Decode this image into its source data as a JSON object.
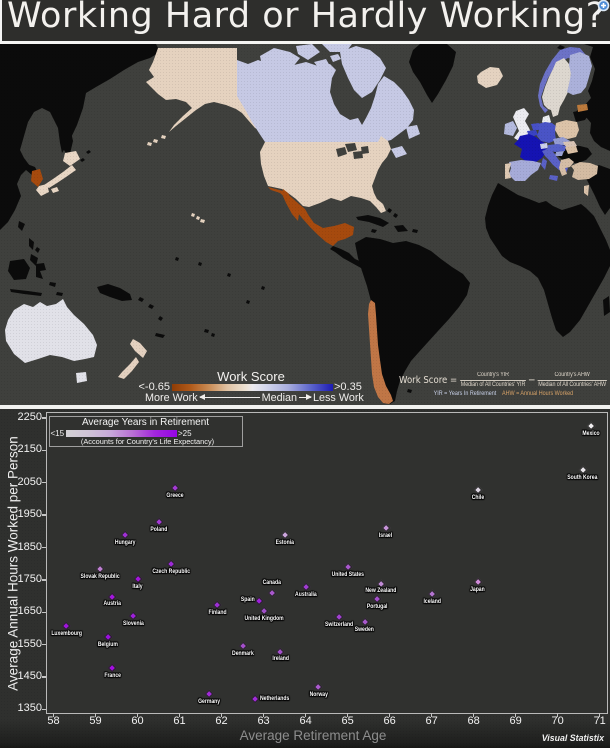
{
  "title": {
    "text": "Working Hard or Hardly Working?"
  },
  "map": {
    "ocean_color": "#3f403d",
    "no_data_color": "#0b0b0b",
    "legend": {
      "title": "Work Score",
      "min_label": "<-0.65",
      "max_label": ">0.35",
      "more_label": "More Work",
      "median_label": "Median",
      "less_label": "Less Work"
    },
    "formula": {
      "lhs": "Work Score =",
      "frac1_num": "Country's YIR",
      "frac1_den": "Median of All Countries' YIR",
      "minus": "−",
      "frac2_num": "Country's AHW",
      "frac2_den": "Median of All Countries' AHW",
      "note_yir": "YIR = Years In Retirement",
      "note_ahw": "AHW = Annual Hours Worked"
    },
    "countries": [
      {
        "name": "United States",
        "fill": "#e5d2bf"
      },
      {
        "name": "Canada",
        "fill": "#c6c9e4"
      },
      {
        "name": "Mexico",
        "fill": "#a64a0e"
      },
      {
        "name": "Chile",
        "fill": "#c07646"
      },
      {
        "name": "Japan",
        "fill": "#e8d6c4"
      },
      {
        "name": "South Korea",
        "fill": "#a64a0e"
      },
      {
        "name": "Australia",
        "fill": "#e1e1e8"
      },
      {
        "name": "New Zealand",
        "fill": "#e3d0bf"
      },
      {
        "name": "Iceland",
        "fill": "#e4d2c0"
      },
      {
        "name": "Norway",
        "fill": "#6c72c6"
      },
      {
        "name": "Sweden",
        "fill": "#ddd7cf"
      },
      {
        "name": "Finland",
        "fill": "#abb1da"
      },
      {
        "name": "Estonia",
        "fill": "#bc7a3c"
      },
      {
        "name": "Denmark",
        "fill": "#ebedf0"
      },
      {
        "name": "United Kingdom",
        "fill": "#ebebf0"
      },
      {
        "name": "Ireland",
        "fill": "#b4bade"
      },
      {
        "name": "Netherlands",
        "fill": "#4750c6"
      },
      {
        "name": "Belgium",
        "fill": "#3a43c2"
      },
      {
        "name": "Germany",
        "fill": "#4a54c6"
      },
      {
        "name": "Poland",
        "fill": "#dcc3a8"
      },
      {
        "name": "France",
        "fill": "#1513b2"
      },
      {
        "name": "Switzerland",
        "fill": "#ccd0ea"
      },
      {
        "name": "Austria",
        "fill": "#5560c8"
      },
      {
        "name": "Czech Republic",
        "fill": "#949cd2"
      },
      {
        "name": "Slovakia",
        "fill": "#d8c3b4"
      },
      {
        "name": "Hungary",
        "fill": "#d9bfa4"
      },
      {
        "name": "Slovenia",
        "fill": "#9aa2d4"
      },
      {
        "name": "Italy",
        "fill": "#5a61c6"
      },
      {
        "name": "Spain",
        "fill": "#a6abd8"
      },
      {
        "name": "Portugal",
        "fill": "#ddc8b2"
      },
      {
        "name": "Greece",
        "fill": "#d5bda6"
      },
      {
        "name": "Turkey",
        "fill": "#d3bba2"
      },
      {
        "name": "Israel",
        "fill": "#d8c0a8"
      }
    ]
  },
  "scatter": {
    "legend": {
      "title": "Average Years in Retirement",
      "min_label": "<15",
      "max_label": ">25",
      "caption": "(Accounts for Country's Life Expectancy)"
    },
    "x_axis": {
      "title": "Average Retirement Age",
      "ticks": [
        58,
        59,
        60,
        61,
        62,
        63,
        64,
        65,
        66,
        67,
        68,
        69,
        70,
        71
      ]
    },
    "y_axis": {
      "title": "Average Annual Hours Worked per Person",
      "ticks": [
        2250,
        2150,
        2050,
        1950,
        1850,
        1750,
        1650,
        1550,
        1450,
        1350
      ]
    },
    "watermark": "Visual Statistix"
  },
  "chart_data": {
    "type": "scatter",
    "title": "Working Hard or Hardly Working?",
    "xlabel": "Average Retirement Age",
    "ylabel": "Average Annual Hours Worked per Person",
    "xlim": [
      57.8,
      71.2
    ],
    "ylim": [
      1337,
      2268
    ],
    "color_legend": "Average Years in Retirement: <15 (light gray) to >25 (purple)",
    "points": [
      {
        "country": "Luxembourg",
        "retirement_age": 58.3,
        "hours_worked": 1609,
        "color": "#a014de",
        "label_side": "below"
      },
      {
        "country": "Slovak Republic",
        "retirement_age": 59.1,
        "hours_worked": 1785,
        "color": "#bf7fd2",
        "label_side": "below"
      },
      {
        "country": "Belgium",
        "retirement_age": 59.3,
        "hours_worked": 1574,
        "color": "#9b10df",
        "label_side": "below"
      },
      {
        "country": "France",
        "retirement_age": 59.4,
        "hours_worked": 1479,
        "color": "#a50ee2",
        "label_side": "below"
      },
      {
        "country": "Austria",
        "retirement_age": 59.4,
        "hours_worked": 1699,
        "color": "#a416dd",
        "label_side": "below"
      },
      {
        "country": "Hungary",
        "retirement_age": 59.7,
        "hours_worked": 1888,
        "color": "#a02fd6",
        "label_side": "below"
      },
      {
        "country": "Slovenia",
        "retirement_age": 59.9,
        "hours_worked": 1640,
        "color": "#9e20dc",
        "label_side": "below"
      },
      {
        "country": "Italy",
        "retirement_age": 60.0,
        "hours_worked": 1752,
        "color": "#a416dd",
        "label_side": "below"
      },
      {
        "country": "Poland",
        "retirement_age": 60.5,
        "hours_worked": 1929,
        "color": "#a33ad4",
        "label_side": "below"
      },
      {
        "country": "Greece",
        "retirement_age": 60.9,
        "hours_worked": 2034,
        "color": "#a33ad4",
        "label_side": "below"
      },
      {
        "country": "Czech Republic",
        "retirement_age": 60.8,
        "hours_worked": 1800,
        "color": "#9d2ad8",
        "label_side": "below"
      },
      {
        "country": "Germany",
        "retirement_age": 61.7,
        "hours_worked": 1397,
        "color": "#a12ad9",
        "label_side": "below"
      },
      {
        "country": "Finland",
        "retirement_age": 61.9,
        "hours_worked": 1672,
        "color": "#9d2fd6",
        "label_side": "below"
      },
      {
        "country": "Denmark",
        "retirement_age": 62.5,
        "hours_worked": 1546,
        "color": "#a44fcb",
        "label_side": "below"
      },
      {
        "country": "Netherlands",
        "retirement_age": 62.8,
        "hours_worked": 1381,
        "color": "#a12ad9",
        "label_side": "right"
      },
      {
        "country": "Spain",
        "retirement_age": 62.9,
        "hours_worked": 1686,
        "color": "#9e20dc",
        "label_side": "left"
      },
      {
        "country": "United Kingdom",
        "retirement_age": 63.0,
        "hours_worked": 1654,
        "color": "#a04fc9",
        "label_side": "below"
      },
      {
        "country": "Canada",
        "retirement_age": 63.2,
        "hours_worked": 1710,
        "color": "#a958cd",
        "label_side": "above"
      },
      {
        "country": "Ireland",
        "retirement_age": 63.4,
        "hours_worked": 1529,
        "color": "#a44fcb",
        "label_side": "below"
      },
      {
        "country": "Estonia",
        "retirement_age": 63.5,
        "hours_worked": 1889,
        "color": "#cba4dc",
        "label_side": "below"
      },
      {
        "country": "Australia",
        "retirement_age": 64.0,
        "hours_worked": 1728,
        "color": "#a03cd2",
        "label_side": "below"
      },
      {
        "country": "Norway",
        "retirement_age": 64.3,
        "hours_worked": 1420,
        "color": "#ab5ace",
        "label_side": "below"
      },
      {
        "country": "Switzerland",
        "retirement_age": 64.8,
        "hours_worked": 1636,
        "color": "#a141d0",
        "label_side": "below"
      },
      {
        "country": "United States",
        "retirement_age": 65.0,
        "hours_worked": 1790,
        "color": "#a958cd",
        "label_side": "below"
      },
      {
        "country": "Sweden",
        "retirement_age": 65.4,
        "hours_worked": 1621,
        "color": "#a958cd",
        "label_side": "below"
      },
      {
        "country": "Portugal",
        "retirement_age": 65.7,
        "hours_worked": 1691,
        "color": "#a44fcb",
        "label_side": "below"
      },
      {
        "country": "New Zealand",
        "retirement_age": 65.8,
        "hours_worked": 1739,
        "color": "#c08ad4",
        "label_side": "below"
      },
      {
        "country": "Israel",
        "retirement_age": 65.9,
        "hours_worked": 1910,
        "color": "#c693d8",
        "label_side": "below"
      },
      {
        "country": "Iceland",
        "retirement_age": 67.0,
        "hours_worked": 1706,
        "color": "#b474d0",
        "label_side": "below"
      },
      {
        "country": "Japan",
        "retirement_age": 68.1,
        "hours_worked": 1745,
        "color": "#cf8ad8",
        "label_side": "below"
      },
      {
        "country": "Chile",
        "retirement_age": 68.1,
        "hours_worked": 2029,
        "color": "#ddd5e2",
        "label_side": "below"
      },
      {
        "country": "South Korea",
        "retirement_age": 70.6,
        "hours_worked": 2090,
        "color": "#e9e6ea",
        "label_side": "below"
      },
      {
        "country": "Mexico",
        "retirement_age": 70.8,
        "hours_worked": 2226,
        "color": "#efedef",
        "label_side": "below"
      }
    ]
  }
}
